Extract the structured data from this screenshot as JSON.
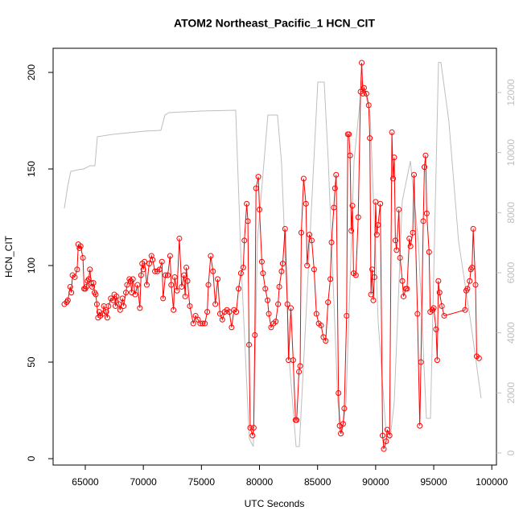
{
  "chart_data": {
    "type": "line",
    "title": "ATOM2 Northeast_Pacific_1 HCN_CIT",
    "x_label": "UTC Seconds",
    "y_label": "HCN_CIT",
    "xlim": [
      62230,
      100400
    ],
    "ylim": [
      -3.3,
      212.5
    ],
    "y2lim": [
      -402,
      13473
    ],
    "xticks": [
      65000,
      70000,
      75000,
      80000,
      85000,
      90000,
      95000,
      100000
    ],
    "yticks": [
      0,
      50,
      100,
      150,
      200
    ],
    "y2ticks": [
      0,
      2000,
      4000,
      6000,
      8000,
      10000,
      12000
    ],
    "series": [
      {
        "axis": "y2",
        "color": "#bebebe",
        "markers": false,
        "x": [
          63200,
          63480,
          63750,
          64380,
          64860,
          65410,
          65830,
          66040,
          67350,
          70120,
          71510,
          71860,
          72200,
          74970,
          77950,
          78430,
          79120,
          79470,
          79820,
          80720,
          81550,
          81900,
          82590,
          83150,
          83430,
          84330,
          85020,
          85570,
          85920,
          86750,
          87100,
          87450,
          88140,
          88830,
          89520,
          90220,
          90910,
          91250,
          91600,
          92290,
          92990,
          93680,
          94370,
          94720,
          95410,
          95620,
          96300,
          97140,
          98180,
          99080
        ],
        "values": [
          8143,
          8866,
          9375,
          9429,
          9455,
          9563,
          9563,
          10527,
          10607,
          10714,
          10741,
          11250,
          11330,
          11384,
          11411,
          6241,
          482,
          214,
          7045,
          11250,
          11250,
          9643,
          2946,
          214,
          214,
          7045,
          12348,
          12348,
          9723,
          1688,
          616,
          1688,
          9723,
          12402,
          11330,
          4366,
          616,
          482,
          1688,
          8384,
          9723,
          7045,
          1152,
          1152,
          13000,
          13000,
          11062,
          7045,
          4366,
          1822
        ]
      },
      {
        "axis": "y",
        "color": "#ff0000",
        "markers": true,
        "x": [
          63200,
          63400,
          63500,
          63700,
          63800,
          63900,
          64100,
          64300,
          64400,
          64500,
          64600,
          64800,
          64900,
          65000,
          65100,
          65200,
          65300,
          65400,
          65500,
          65600,
          65700,
          65800,
          65900,
          66000,
          66100,
          66200,
          66300,
          66500,
          66600,
          66800,
          66900,
          67000,
          67200,
          67400,
          67500,
          67600,
          67700,
          67900,
          68000,
          68200,
          68300,
          68500,
          68600,
          68800,
          68900,
          69000,
          69100,
          69300,
          69500,
          69700,
          69800,
          69900,
          70000,
          70100,
          70300,
          70500,
          70700,
          70800,
          71000,
          71200,
          71400,
          71600,
          71700,
          71900,
          72100,
          72300,
          72400,
          72600,
          72700,
          72900,
          73100,
          73300,
          73500,
          73600,
          73700,
          73800,
          74000,
          74300,
          74500,
          74700,
          74900,
          75100,
          75300,
          75500,
          75600,
          75800,
          76000,
          76200,
          76400,
          76600,
          76800,
          77000,
          77200,
          77400,
          77600,
          77800,
          78000,
          78200,
          78400,
          78600,
          78700,
          78900,
          79000,
          79100,
          79200,
          79400,
          79500,
          79600,
          79700,
          79900,
          80000,
          80200,
          80300,
          80500,
          80700,
          80800,
          81000,
          81200,
          81400,
          81600,
          81700,
          81900,
          82000,
          82200,
          82400,
          82500,
          82700,
          82900,
          83100,
          83200,
          83400,
          83500,
          83600,
          83800,
          84000,
          84100,
          84300,
          84500,
          84700,
          84900,
          85100,
          85300,
          85500,
          85700,
          85900,
          86100,
          86200,
          86400,
          86500,
          86600,
          86800,
          86900,
          87000,
          87200,
          87300,
          87500,
          87600,
          87700,
          87800,
          87900,
          88000,
          88100,
          88300,
          88500,
          88700,
          88800,
          88900,
          89000,
          89200,
          89400,
          89500,
          89600,
          89700,
          89800,
          89900,
          90000,
          90100,
          90200,
          90400,
          90600,
          90700,
          90900,
          91000,
          91200,
          91400,
          91500,
          91600,
          91700,
          91800,
          92000,
          92100,
          92300,
          92400,
          92600,
          92700,
          92900,
          93000,
          93200,
          93300,
          93600,
          93800,
          93900,
          94100,
          94200,
          94300,
          94400,
          94600,
          94700,
          94900,
          95000,
          95200,
          95300,
          95400,
          95500,
          95700,
          95900,
          97700,
          97800,
          97900,
          98100,
          98200,
          98300,
          98400,
          98600,
          98700,
          98900
        ],
        "values": [
          80,
          81,
          82,
          89,
          86,
          95,
          94,
          98,
          111,
          109,
          110,
          104,
          88,
          88,
          89,
          92,
          93,
          98,
          91,
          89,
          91,
          86,
          85,
          80,
          73,
          76,
          74,
          75,
          79,
          76,
          73,
          79,
          83,
          82,
          85,
          79,
          84,
          80,
          77,
          83,
          79,
          86,
          90,
          93,
          92,
          86,
          93,
          85,
          90,
          78,
          95,
          101,
          98,
          102,
          90,
          101,
          105,
          103,
          97,
          97,
          98,
          102,
          83,
          95,
          95,
          105,
          90,
          77,
          94,
          87,
          114,
          89,
          95,
          84,
          99,
          92,
          79,
          70,
          74,
          72,
          70,
          70,
          70,
          76,
          90,
          105,
          97,
          80,
          93,
          75,
          72,
          76,
          77,
          76,
          68,
          77,
          76,
          88,
          96,
          99,
          113,
          132,
          123,
          59,
          16,
          12,
          16,
          64,
          140,
          146,
          129,
          102,
          96,
          88,
          82,
          75,
          68,
          70,
          71,
          80,
          89,
          97,
          101,
          119,
          80,
          51,
          78,
          51,
          20,
          20,
          45,
          48,
          117,
          145,
          132,
          100,
          116,
          113,
          98,
          75,
          70,
          69,
          63,
          61,
          81,
          93,
          112,
          130,
          140,
          147,
          34,
          17,
          13,
          18,
          26,
          74,
          168,
          168,
          157,
          118,
          131,
          96,
          95,
          125,
          190,
          205,
          189,
          192,
          189,
          183,
          166,
          85,
          98,
          82,
          94,
          133,
          116,
          121,
          132,
          12,
          5,
          9,
          15,
          12,
          169,
          145,
          156,
          113,
          108,
          129,
          104,
          92,
          84,
          88,
          88,
          114,
          110,
          117,
          147,
          75,
          17,
          50,
          123,
          151,
          157,
          127,
          107,
          76,
          77,
          78,
          67,
          51,
          92,
          86,
          79,
          74,
          77,
          87,
          88,
          92,
          98,
          99,
          119,
          90,
          53,
          52
        ]
      }
    ]
  }
}
